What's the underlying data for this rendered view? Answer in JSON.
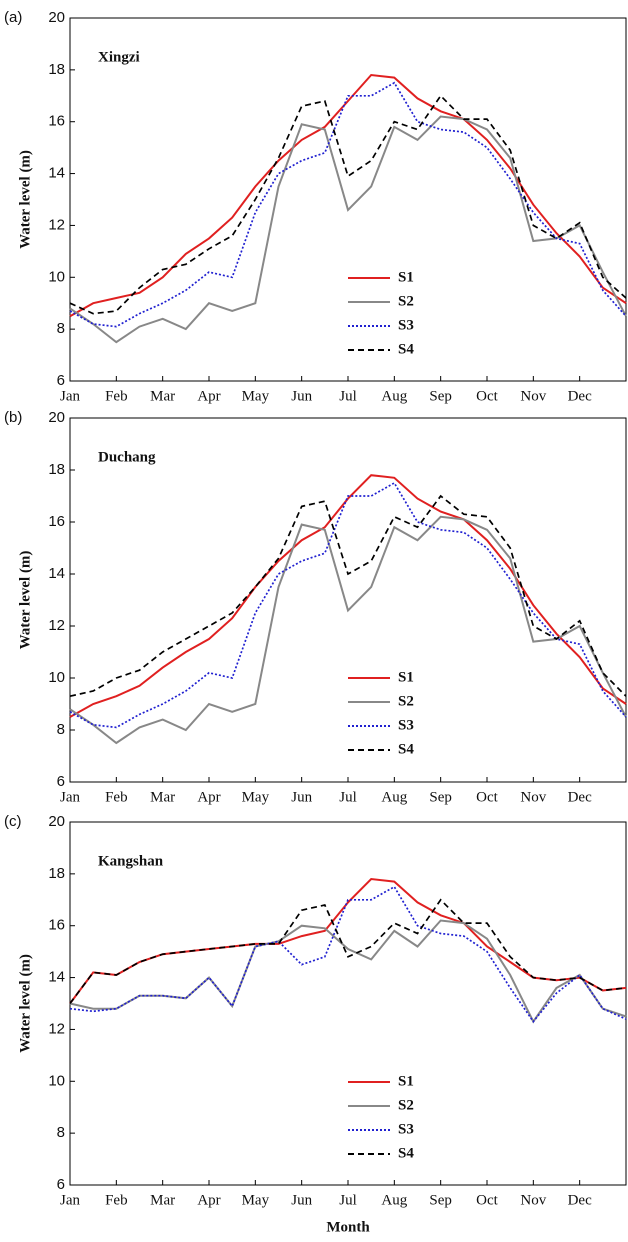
{
  "chart_data": [
    {
      "type": "line",
      "panel_label": "(a)",
      "title": "Xingzi",
      "y_label": "Water level (m)",
      "categories": [
        "Jan",
        null,
        "Feb",
        null,
        "Mar",
        null,
        "Apr",
        null,
        "May",
        null,
        "Jun",
        null,
        "Jul",
        null,
        "Aug",
        null,
        "Sep",
        null,
        "Oct",
        null,
        "Nov",
        null,
        "Dec",
        null,
        null
      ],
      "ylim": [
        6,
        20
      ],
      "yticks": [
        6,
        8,
        10,
        12,
        14,
        16,
        18,
        20
      ],
      "series": [
        {
          "name": "S1",
          "color": "#e02020",
          "style": "solid",
          "values": [
            8.5,
            9.0,
            9.2,
            9.4,
            10.0,
            10.9,
            11.5,
            12.3,
            13.5,
            14.5,
            15.3,
            15.8,
            16.8,
            17.8,
            17.7,
            16.9,
            16.4,
            16.1,
            15.3,
            14.2,
            12.8,
            11.7,
            10.8,
            9.6,
            9.0
          ]
        },
        {
          "name": "S2",
          "color": "#888888",
          "style": "solid",
          "values": [
            8.8,
            8.2,
            7.5,
            8.1,
            8.4,
            8.0,
            9.0,
            8.7,
            9.0,
            13.5,
            15.9,
            15.7,
            12.6,
            13.5,
            15.8,
            15.3,
            16.2,
            16.1,
            15.7,
            14.6,
            11.4,
            11.5,
            12.0,
            10.2,
            8.5
          ]
        },
        {
          "name": "S3",
          "color": "#2020d0",
          "style": "dotted",
          "values": [
            8.7,
            8.2,
            8.1,
            8.6,
            9.0,
            9.5,
            10.2,
            10.0,
            12.5,
            14.0,
            14.5,
            14.8,
            17.0,
            17.0,
            17.5,
            16.0,
            15.7,
            15.6,
            15.0,
            13.8,
            12.5,
            11.5,
            11.3,
            9.5,
            8.5
          ]
        },
        {
          "name": "S4",
          "color": "#000000",
          "style": "dashed",
          "values": [
            9.0,
            8.6,
            8.7,
            9.6,
            10.3,
            10.5,
            11.1,
            11.6,
            13.0,
            14.6,
            16.6,
            16.8,
            13.9,
            14.5,
            16.0,
            15.7,
            17.0,
            16.1,
            16.1,
            14.9,
            12.0,
            11.5,
            12.1,
            10.0,
            9.2
          ]
        }
      ]
    },
    {
      "type": "line",
      "panel_label": "(b)",
      "title": "Duchang",
      "y_label": "Water level (m)",
      "categories": [
        "Jan",
        null,
        "Feb",
        null,
        "Mar",
        null,
        "Apr",
        null,
        "May",
        null,
        "Jun",
        null,
        "Jul",
        null,
        "Aug",
        null,
        "Sep",
        null,
        "Oct",
        null,
        "Nov",
        null,
        "Dec",
        null,
        null
      ],
      "ylim": [
        6,
        20
      ],
      "yticks": [
        6,
        8,
        10,
        12,
        14,
        16,
        18,
        20
      ],
      "series": [
        {
          "name": "S1",
          "color": "#e02020",
          "style": "solid",
          "values": [
            8.5,
            9.0,
            9.3,
            9.7,
            10.4,
            11.0,
            11.5,
            12.3,
            13.5,
            14.5,
            15.3,
            15.8,
            16.9,
            17.8,
            17.7,
            16.9,
            16.4,
            16.1,
            15.3,
            14.2,
            12.8,
            11.7,
            10.8,
            9.6,
            9.0
          ]
        },
        {
          "name": "S2",
          "color": "#888888",
          "style": "solid",
          "values": [
            8.8,
            8.2,
            7.5,
            8.1,
            8.4,
            8.0,
            9.0,
            8.7,
            9.0,
            13.5,
            15.9,
            15.7,
            12.6,
            13.5,
            15.8,
            15.3,
            16.2,
            16.1,
            15.7,
            14.6,
            11.4,
            11.5,
            12.0,
            10.2,
            8.5
          ]
        },
        {
          "name": "S3",
          "color": "#2020d0",
          "style": "dotted",
          "values": [
            8.7,
            8.2,
            8.1,
            8.6,
            9.0,
            9.5,
            10.2,
            10.0,
            12.5,
            14.0,
            14.5,
            14.8,
            17.0,
            17.0,
            17.5,
            16.0,
            15.7,
            15.6,
            15.0,
            13.8,
            12.5,
            11.5,
            11.3,
            9.5,
            8.5
          ]
        },
        {
          "name": "S4",
          "color": "#000000",
          "style": "dashed",
          "values": [
            9.3,
            9.5,
            10.0,
            10.3,
            11.0,
            11.5,
            12.0,
            12.5,
            13.5,
            14.6,
            16.6,
            16.8,
            14.0,
            14.5,
            16.2,
            15.8,
            17.0,
            16.3,
            16.2,
            15.0,
            12.0,
            11.5,
            12.2,
            10.2,
            9.3
          ]
        }
      ]
    },
    {
      "type": "line",
      "panel_label": "(c)",
      "title": "Kangshan",
      "y_label": "Water level (m)",
      "x_label": "Month",
      "categories": [
        "Jan",
        null,
        "Feb",
        null,
        "Mar",
        null,
        "Apr",
        null,
        "May",
        null,
        "Jun",
        null,
        "Jul",
        null,
        "Aug",
        null,
        "Sep",
        null,
        "Oct",
        null,
        "Nov",
        null,
        "Dec",
        null,
        null
      ],
      "ylim": [
        6,
        20
      ],
      "yticks": [
        6,
        8,
        10,
        12,
        14,
        16,
        18,
        20
      ],
      "series": [
        {
          "name": "S1",
          "color": "#e02020",
          "style": "solid",
          "values": [
            13.0,
            14.2,
            14.1,
            14.6,
            14.9,
            15.0,
            15.1,
            15.2,
            15.3,
            15.3,
            15.6,
            15.8,
            16.9,
            17.8,
            17.7,
            16.9,
            16.4,
            16.1,
            15.2,
            14.6,
            14.0,
            13.9,
            14.0,
            13.5,
            13.6
          ]
        },
        {
          "name": "S2",
          "color": "#888888",
          "style": "solid",
          "values": [
            13.0,
            12.8,
            12.8,
            13.3,
            13.3,
            13.2,
            14.0,
            12.9,
            15.2,
            15.4,
            16.0,
            15.9,
            15.1,
            14.7,
            15.8,
            15.2,
            16.2,
            16.1,
            15.5,
            14.1,
            12.3,
            13.6,
            14.1,
            12.8,
            12.5
          ]
        },
        {
          "name": "S3",
          "color": "#2020d0",
          "style": "dotted",
          "values": [
            12.8,
            12.7,
            12.8,
            13.3,
            13.3,
            13.2,
            14.0,
            12.9,
            15.2,
            15.4,
            14.5,
            14.8,
            17.0,
            17.0,
            17.5,
            16.0,
            15.7,
            15.6,
            15.0,
            13.6,
            12.3,
            13.4,
            14.1,
            12.8,
            12.4
          ]
        },
        {
          "name": "S4",
          "color": "#000000",
          "style": "dashed",
          "values": [
            13.0,
            14.2,
            14.1,
            14.6,
            14.9,
            15.0,
            15.1,
            15.2,
            15.3,
            15.3,
            16.6,
            16.8,
            14.8,
            15.2,
            16.1,
            15.7,
            17.0,
            16.1,
            16.1,
            14.8,
            14.0,
            13.9,
            14.0,
            13.5,
            13.6
          ]
        }
      ]
    }
  ]
}
